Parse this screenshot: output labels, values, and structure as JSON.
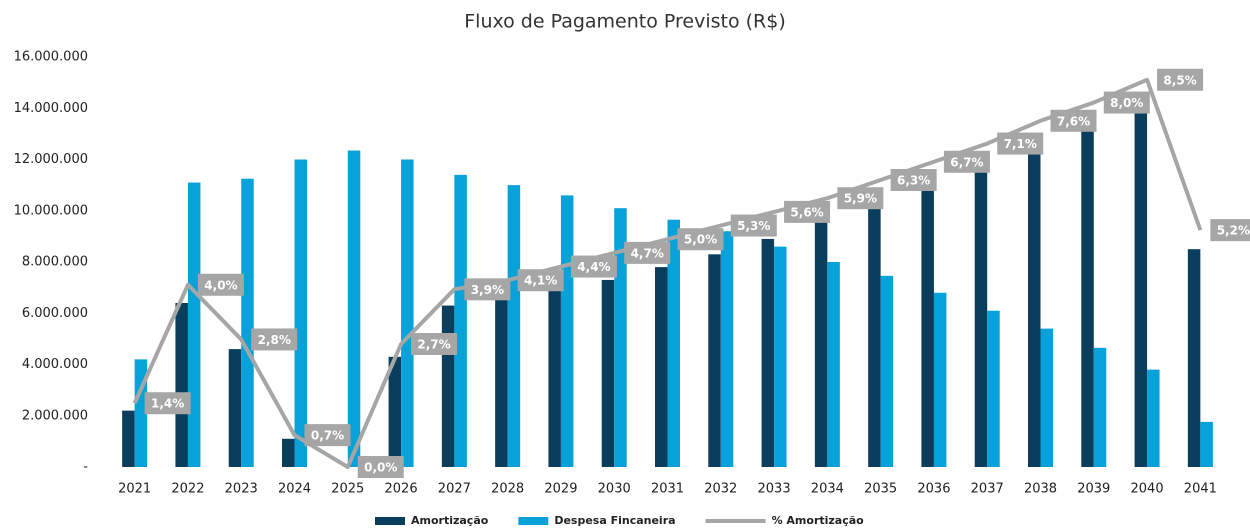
{
  "chart_data": {
    "type": "bar",
    "title": "Fluxo de Pagamento Previsto (R$)",
    "categories": [
      "2021",
      "2022",
      "2023",
      "2024",
      "2025",
      "2026",
      "2027",
      "2028",
      "2029",
      "2030",
      "2031",
      "2032",
      "2033",
      "2034",
      "2035",
      "2036",
      "2037",
      "2038",
      "2039",
      "2040",
      "2041"
    ],
    "series": [
      {
        "name": "Amortização",
        "color": "#0b3d5c",
        "values": [
          2200000,
          6400000,
          4600000,
          1100000,
          0,
          4300000,
          6300000,
          6600000,
          6900000,
          7300000,
          7800000,
          8300000,
          8900000,
          9600000,
          10200000,
          10800000,
          11500000,
          12300000,
          13100000,
          13900000,
          8500000
        ]
      },
      {
        "name": "Despesa Fincaneira",
        "color": "#08a2da",
        "values": [
          4200000,
          11100000,
          11250000,
          12000000,
          12350000,
          12000000,
          11400000,
          11000000,
          10600000,
          10100000,
          9650000,
          9200000,
          8600000,
          8000000,
          7460000,
          6800000,
          6100000,
          5400000,
          4650000,
          3800000,
          1760000
        ]
      },
      {
        "name": "% Amortização",
        "color": "#a6a6a6",
        "type": "line",
        "axis": "y2",
        "values": [
          1.4,
          4.0,
          2.8,
          0.7,
          0.0,
          2.7,
          3.9,
          4.1,
          4.4,
          4.7,
          5.0,
          5.3,
          5.6,
          5.9,
          6.3,
          6.7,
          7.1,
          7.6,
          8.0,
          8.5,
          5.2
        ],
        "value_labels": [
          "1,4%",
          "4,0%",
          "2,8%",
          "0,7%",
          "0,0%",
          "2,7%",
          "3,9%",
          "4,1%",
          "4,4%",
          "4,7%",
          "5,0%",
          "5,3%",
          "5,6%",
          "5,9%",
          "6,3%",
          "6,7%",
          "7,1%",
          "7,6%",
          "8,0%",
          "8,5%",
          "5,2%"
        ]
      }
    ],
    "ylim": [
      0,
      16000000
    ],
    "yticks": [
      {
        "value": 0,
        "label": "-"
      },
      {
        "value": 2000000,
        "label": "2.000.000"
      },
      {
        "value": 4000000,
        "label": "4.000.000"
      },
      {
        "value": 6000000,
        "label": "6.000.000"
      },
      {
        "value": 8000000,
        "label": "8.000.000"
      },
      {
        "value": 10000000,
        "label": "10.000.000"
      },
      {
        "value": 12000000,
        "label": "12.000.000"
      },
      {
        "value": 14000000,
        "label": "14.000.000"
      },
      {
        "value": 16000000,
        "label": "16.000.000"
      }
    ],
    "y2lim": [
      0,
      9
    ],
    "grid": false
  }
}
